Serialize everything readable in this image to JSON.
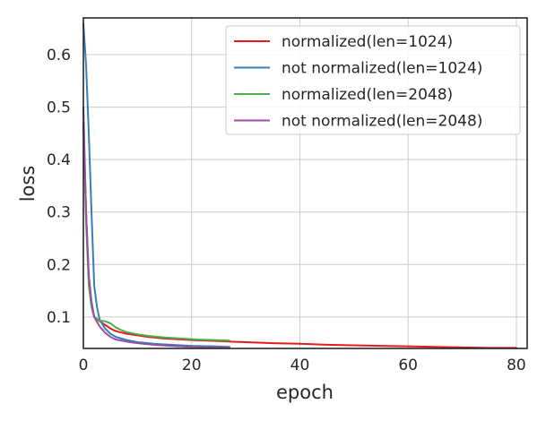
{
  "chart_data": {
    "type": "line",
    "title": "",
    "xlabel": "epoch",
    "ylabel": "loss",
    "xlim": [
      0,
      82
    ],
    "ylim": [
      0.04,
      0.67
    ],
    "x_ticks": [
      0,
      20,
      40,
      60,
      80
    ],
    "y_ticks": [
      0.1,
      0.2,
      0.3,
      0.4,
      0.5,
      0.6
    ],
    "x_tick_labels": [
      "0",
      "20",
      "40",
      "60",
      "80"
    ],
    "y_tick_labels": [
      "0.1",
      "0.2",
      "0.3",
      "0.4",
      "0.5",
      "0.6"
    ],
    "grid": true,
    "legend_position": "top-right",
    "series": [
      {
        "name": "normalized(len=1024)",
        "color": "#e41a1c",
        "x": [
          0,
          0.5,
          1,
          1.5,
          2,
          3,
          4,
          5,
          6,
          8,
          10,
          12,
          15,
          20,
          25,
          30,
          35,
          40,
          45,
          50,
          55,
          60,
          65,
          70,
          75,
          80
        ],
        "y": [
          0.47,
          0.3,
          0.17,
          0.12,
          0.1,
          0.092,
          0.085,
          0.078,
          0.073,
          0.068,
          0.065,
          0.062,
          0.059,
          0.056,
          0.054,
          0.052,
          0.05,
          0.049,
          0.047,
          0.046,
          0.045,
          0.044,
          0.043,
          0.042,
          0.041,
          0.041
        ]
      },
      {
        "name": "not normalized(len=1024)",
        "color": "#377eb8",
        "x": [
          0,
          0.5,
          1,
          1.5,
          2,
          2.5,
          3,
          4,
          5,
          6,
          8,
          10,
          13,
          16,
          20,
          24,
          27
        ],
        "y": [
          0.66,
          0.58,
          0.45,
          0.3,
          0.16,
          0.12,
          0.095,
          0.078,
          0.068,
          0.062,
          0.056,
          0.052,
          0.049,
          0.047,
          0.045,
          0.044,
          0.043
        ]
      },
      {
        "name": "normalized(len=2048)",
        "color": "#4daf4a",
        "x": [
          0,
          0.5,
          1,
          1.5,
          2,
          3,
          4,
          5,
          6,
          7,
          8,
          10,
          12,
          15,
          18,
          21,
          24,
          27
        ],
        "y": [
          0.47,
          0.28,
          0.16,
          0.12,
          0.1,
          0.093,
          0.092,
          0.088,
          0.08,
          0.075,
          0.071,
          0.067,
          0.064,
          0.061,
          0.059,
          0.057,
          0.056,
          0.055
        ]
      },
      {
        "name": "not normalized(len=2048)",
        "color": "#984ea3",
        "x": [
          0,
          0.5,
          1,
          1.5,
          2,
          3,
          4,
          5,
          6,
          8,
          10,
          13,
          16,
          20,
          24,
          27
        ],
        "y": [
          0.5,
          0.3,
          0.18,
          0.13,
          0.1,
          0.082,
          0.07,
          0.062,
          0.057,
          0.053,
          0.05,
          0.047,
          0.045,
          0.043,
          0.042,
          0.042
        ]
      }
    ]
  }
}
